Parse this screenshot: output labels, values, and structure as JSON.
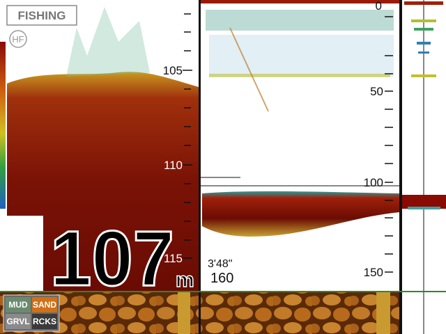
{
  "mode": "FISHING",
  "frequency": "HF",
  "left_scale": [
    "105",
    "110",
    "115"
  ],
  "depth": {
    "value": "107",
    "unit": "m"
  },
  "right_scale": [
    "0",
    "50",
    "100",
    "150"
  ],
  "zoom_inset": {
    "time": "3'48\"",
    "range": "160"
  },
  "bottom_legend": [
    "MUD",
    "SAND",
    "GRVL",
    "RCKS"
  ]
}
